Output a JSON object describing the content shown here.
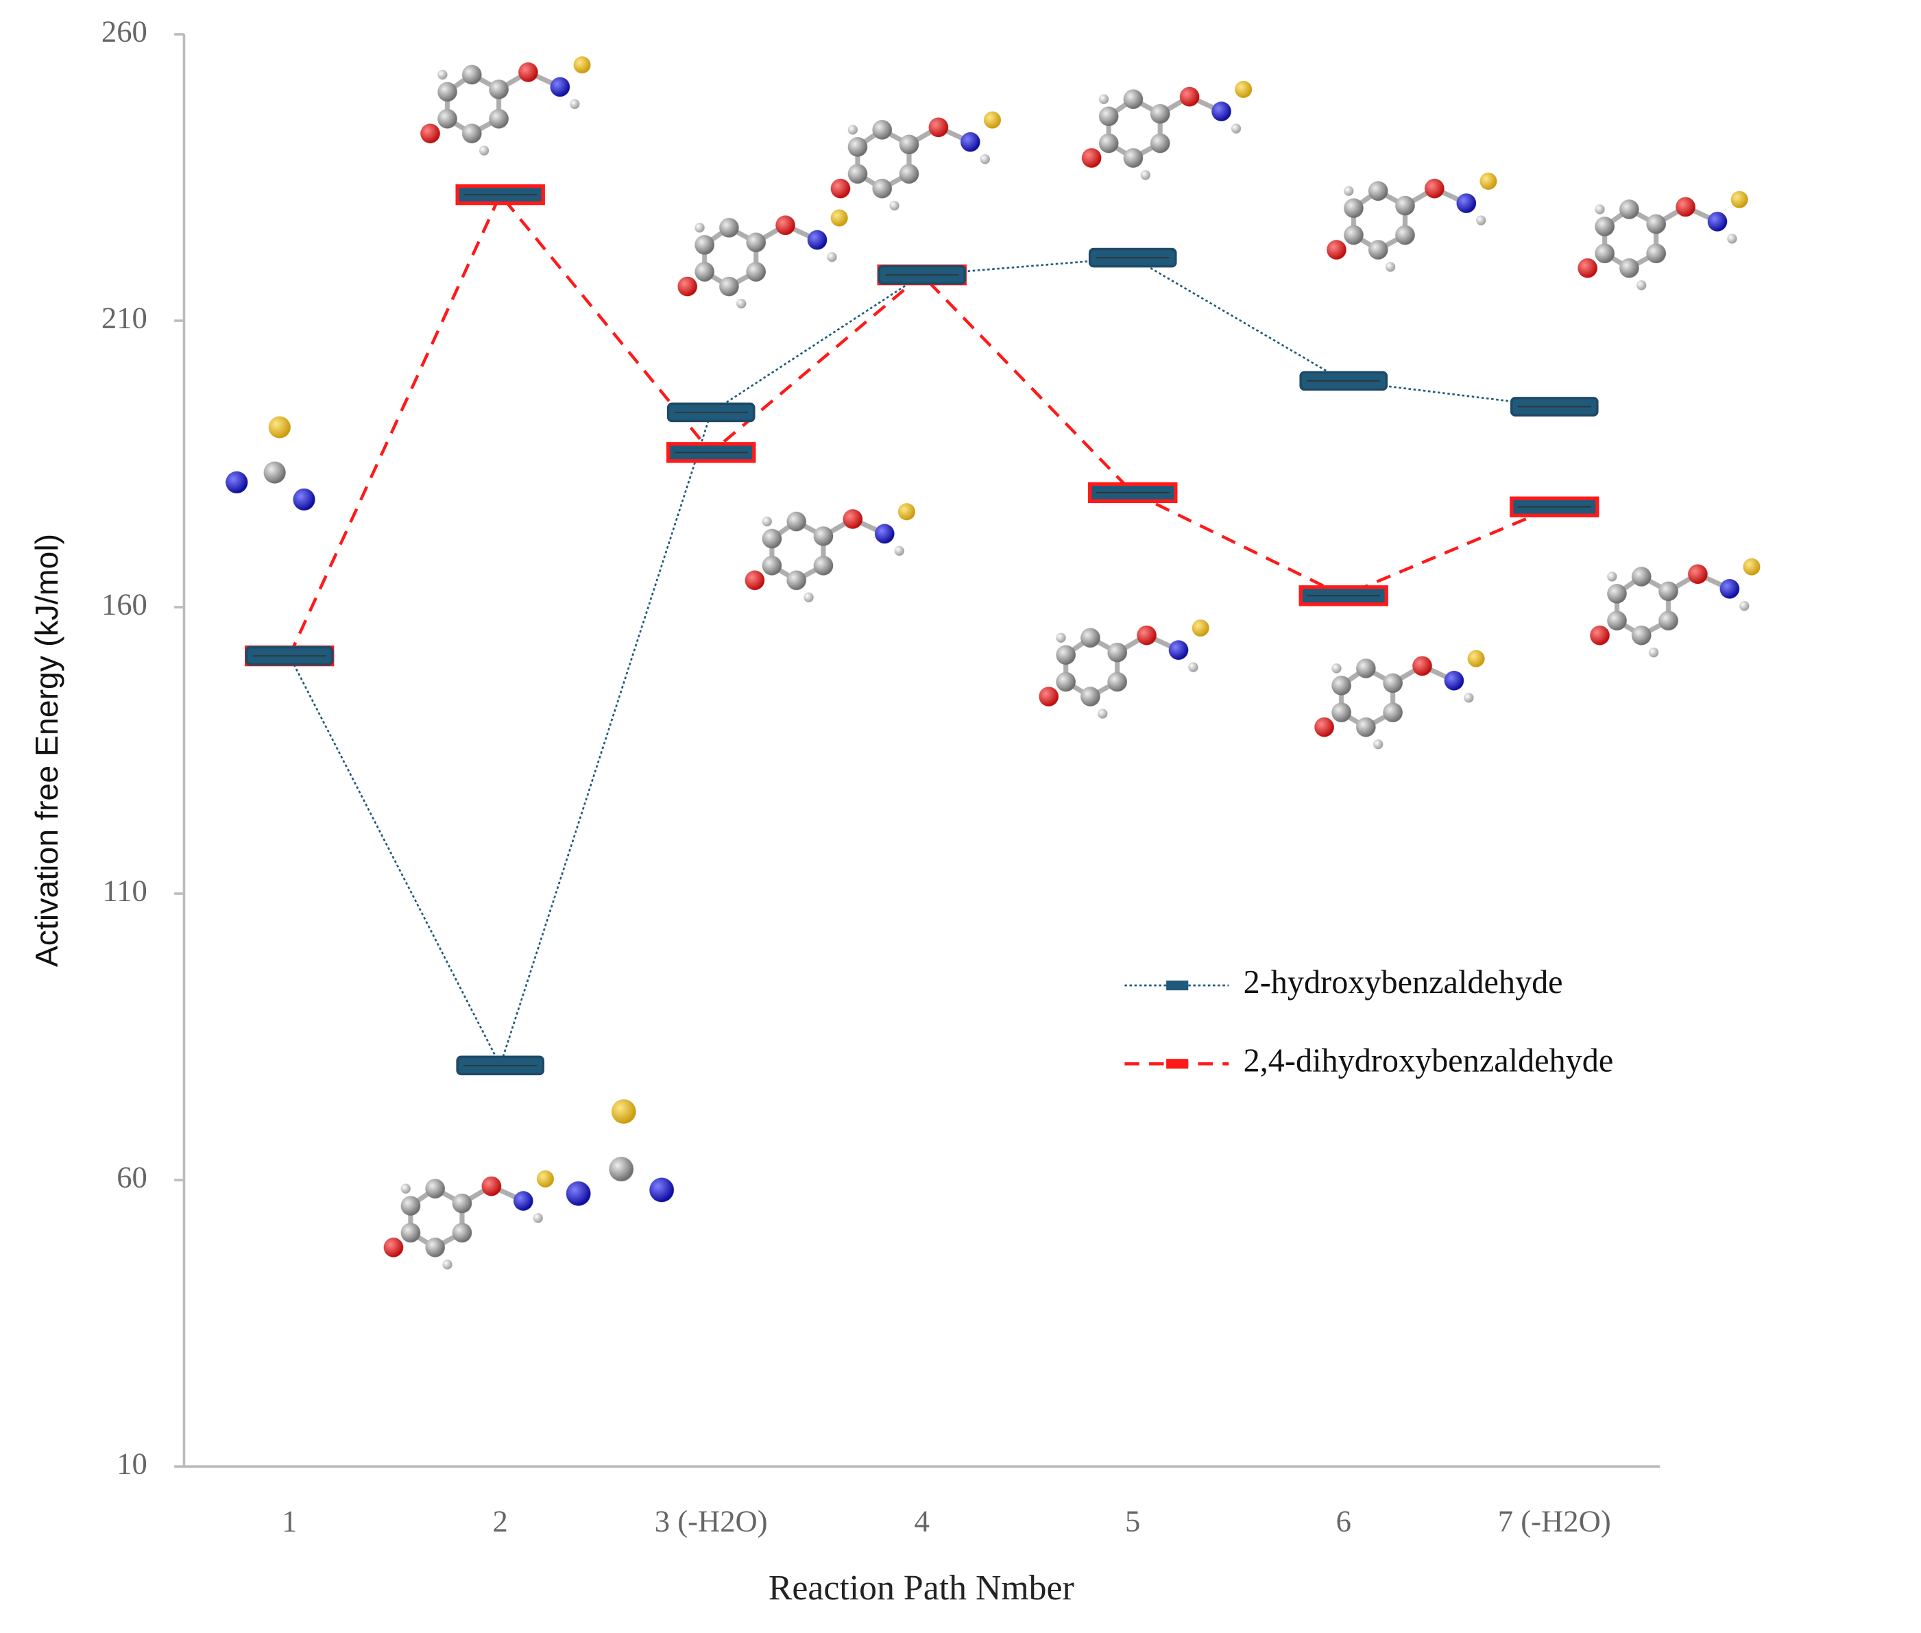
{
  "chart_data": {
    "type": "line",
    "xlabel": "Reaction Path Nmber",
    "ylabel": "Activation free Energy (kJ/mol)",
    "categories": [
      "1",
      "2",
      "3 (-H2O)",
      "4",
      "5",
      "6",
      "7 (-H2O)"
    ],
    "series": [
      {
        "name": "2-hydroxybenzaldehyde",
        "color": "#1f5a7a",
        "line_style": "dotted",
        "values": [
          151.5,
          80,
          194,
          218,
          221,
          199.5,
          195
        ]
      },
      {
        "name": "2,4-dihydroxybenzaldehyde",
        "color": "#ff1a1a",
        "line_style": "dashed",
        "values": [
          151.5,
          232,
          187,
          218,
          180,
          162,
          177.5
        ]
      }
    ],
    "ylim": [
      10,
      260
    ],
    "yticks": [
      10,
      60,
      110,
      160,
      210,
      260
    ],
    "grid": false
  }
}
